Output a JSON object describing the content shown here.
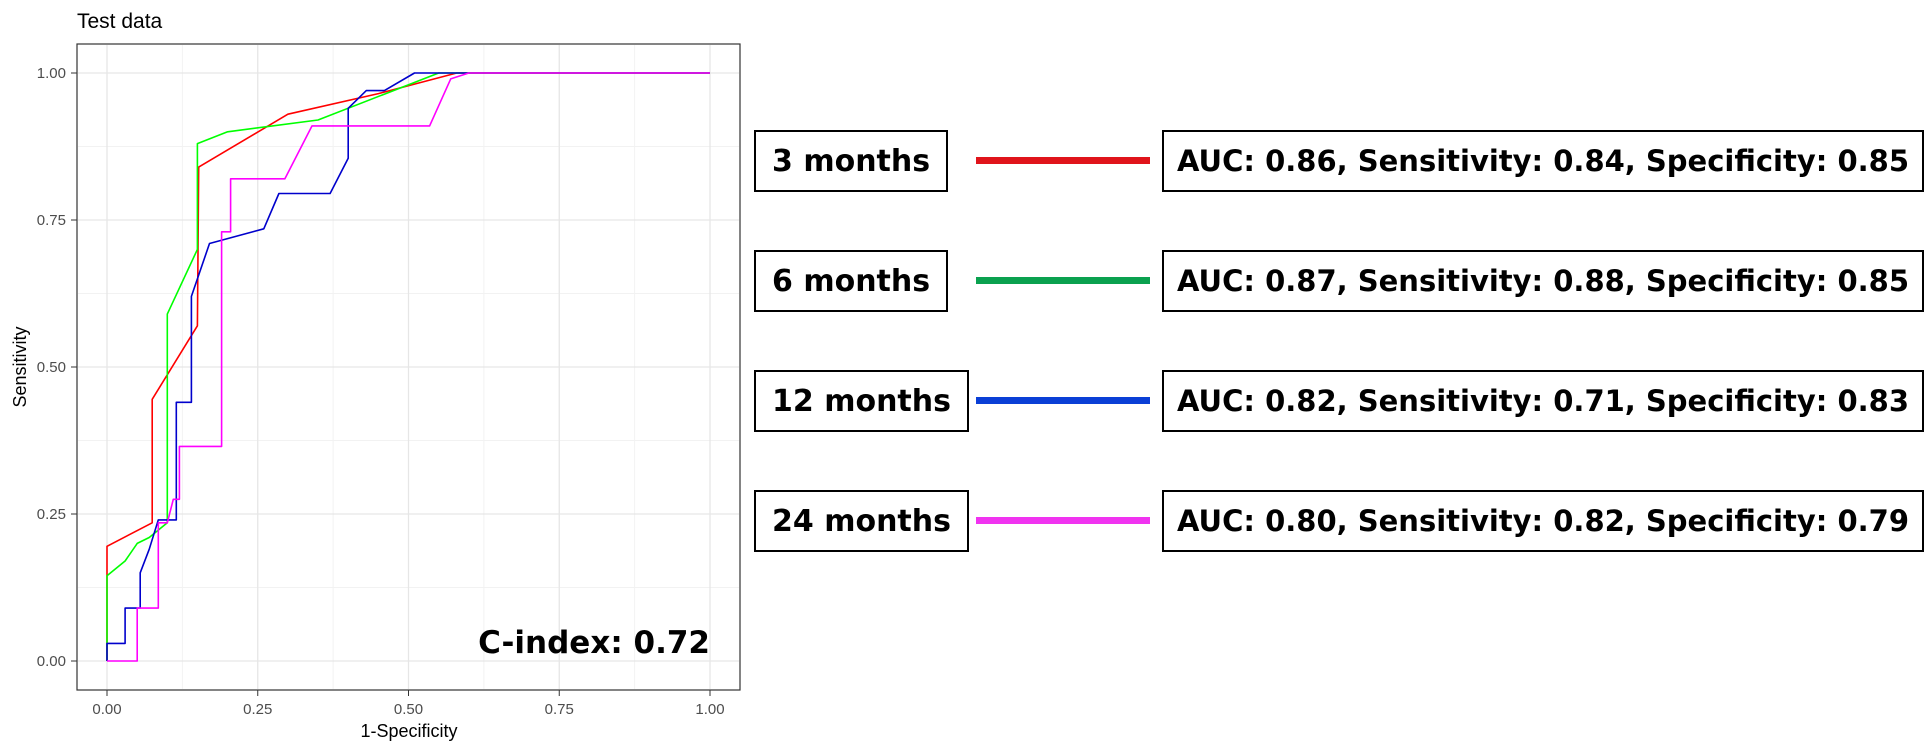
{
  "chart_data": {
    "type": "line",
    "title": "Test data",
    "xlabel": "1-Specificity",
    "ylabel": "Sensitivity",
    "xlim": [
      0,
      1
    ],
    "ylim": [
      0,
      1
    ],
    "x_ticks": [
      "0.00",
      "0.25",
      "0.50",
      "0.75",
      "1.00"
    ],
    "y_ticks": [
      "0.00",
      "0.25",
      "0.50",
      "0.75",
      "1.00"
    ],
    "grid": true,
    "annotation": "C-index: 0.72",
    "series": [
      {
        "name": "3 months",
        "color": "#ff0000",
        "stats": "AUC: 0.86, Sensitivity: 0.84, Specificity: 0.85",
        "points": [
          [
            0,
            0
          ],
          [
            0,
            0.195
          ],
          [
            0.075,
            0.235
          ],
          [
            0.075,
            0.445
          ],
          [
            0.15,
            0.57
          ],
          [
            0.152,
            0.84
          ],
          [
            0.3,
            0.93
          ],
          [
            0.45,
            0.965
          ],
          [
            0.58,
            1.0
          ],
          [
            1.0,
            1.0
          ]
        ]
      },
      {
        "name": "6 months",
        "color": "#00ff00",
        "stats": "AUC: 0.87, Sensitivity: 0.88, Specificity: 0.85",
        "points": [
          [
            0,
            0
          ],
          [
            0,
            0.145
          ],
          [
            0.03,
            0.17
          ],
          [
            0.05,
            0.2
          ],
          [
            0.07,
            0.21
          ],
          [
            0.1,
            0.235
          ],
          [
            0.1,
            0.59
          ],
          [
            0.15,
            0.7
          ],
          [
            0.15,
            0.88
          ],
          [
            0.2,
            0.9
          ],
          [
            0.35,
            0.92
          ],
          [
            0.55,
            1.0
          ],
          [
            1.0,
            1.0
          ]
        ]
      },
      {
        "name": "12 months",
        "color": "#0000cc",
        "stats": "AUC: 0.82, Sensitivity: 0.71, Specificity: 0.83",
        "points": [
          [
            0,
            0
          ],
          [
            0,
            0.03
          ],
          [
            0.03,
            0.03
          ],
          [
            0.03,
            0.09
          ],
          [
            0.055,
            0.09
          ],
          [
            0.055,
            0.15
          ],
          [
            0.07,
            0.19
          ],
          [
            0.085,
            0.24
          ],
          [
            0.1,
            0.24
          ],
          [
            0.115,
            0.24
          ],
          [
            0.115,
            0.44
          ],
          [
            0.14,
            0.44
          ],
          [
            0.14,
            0.62
          ],
          [
            0.17,
            0.71
          ],
          [
            0.26,
            0.735
          ],
          [
            0.285,
            0.795
          ],
          [
            0.37,
            0.795
          ],
          [
            0.4,
            0.855
          ],
          [
            0.4,
            0.94
          ],
          [
            0.43,
            0.97
          ],
          [
            0.46,
            0.97
          ],
          [
            0.51,
            1.0
          ],
          [
            1.0,
            1.0
          ]
        ]
      },
      {
        "name": "24 months",
        "color": "#ff00ff",
        "stats": "AUC: 0.80, Sensitivity: 0.82, Specificity: 0.79",
        "points": [
          [
            0,
            0
          ],
          [
            0.05,
            0
          ],
          [
            0.05,
            0.09
          ],
          [
            0.085,
            0.09
          ],
          [
            0.085,
            0.235
          ],
          [
            0.1,
            0.235
          ],
          [
            0.11,
            0.275
          ],
          [
            0.12,
            0.275
          ],
          [
            0.12,
            0.365
          ],
          [
            0.19,
            0.365
          ],
          [
            0.19,
            0.73
          ],
          [
            0.205,
            0.73
          ],
          [
            0.205,
            0.82
          ],
          [
            0.295,
            0.82
          ],
          [
            0.34,
            0.91
          ],
          [
            0.535,
            0.91
          ],
          [
            0.57,
            0.99
          ],
          [
            0.6,
            1.0
          ],
          [
            1.0,
            1.0
          ]
        ]
      }
    ]
  },
  "legend_colors": [
    "#e0141b",
    "#0aa14f",
    "#0a3fd6",
    "#f033f0"
  ]
}
